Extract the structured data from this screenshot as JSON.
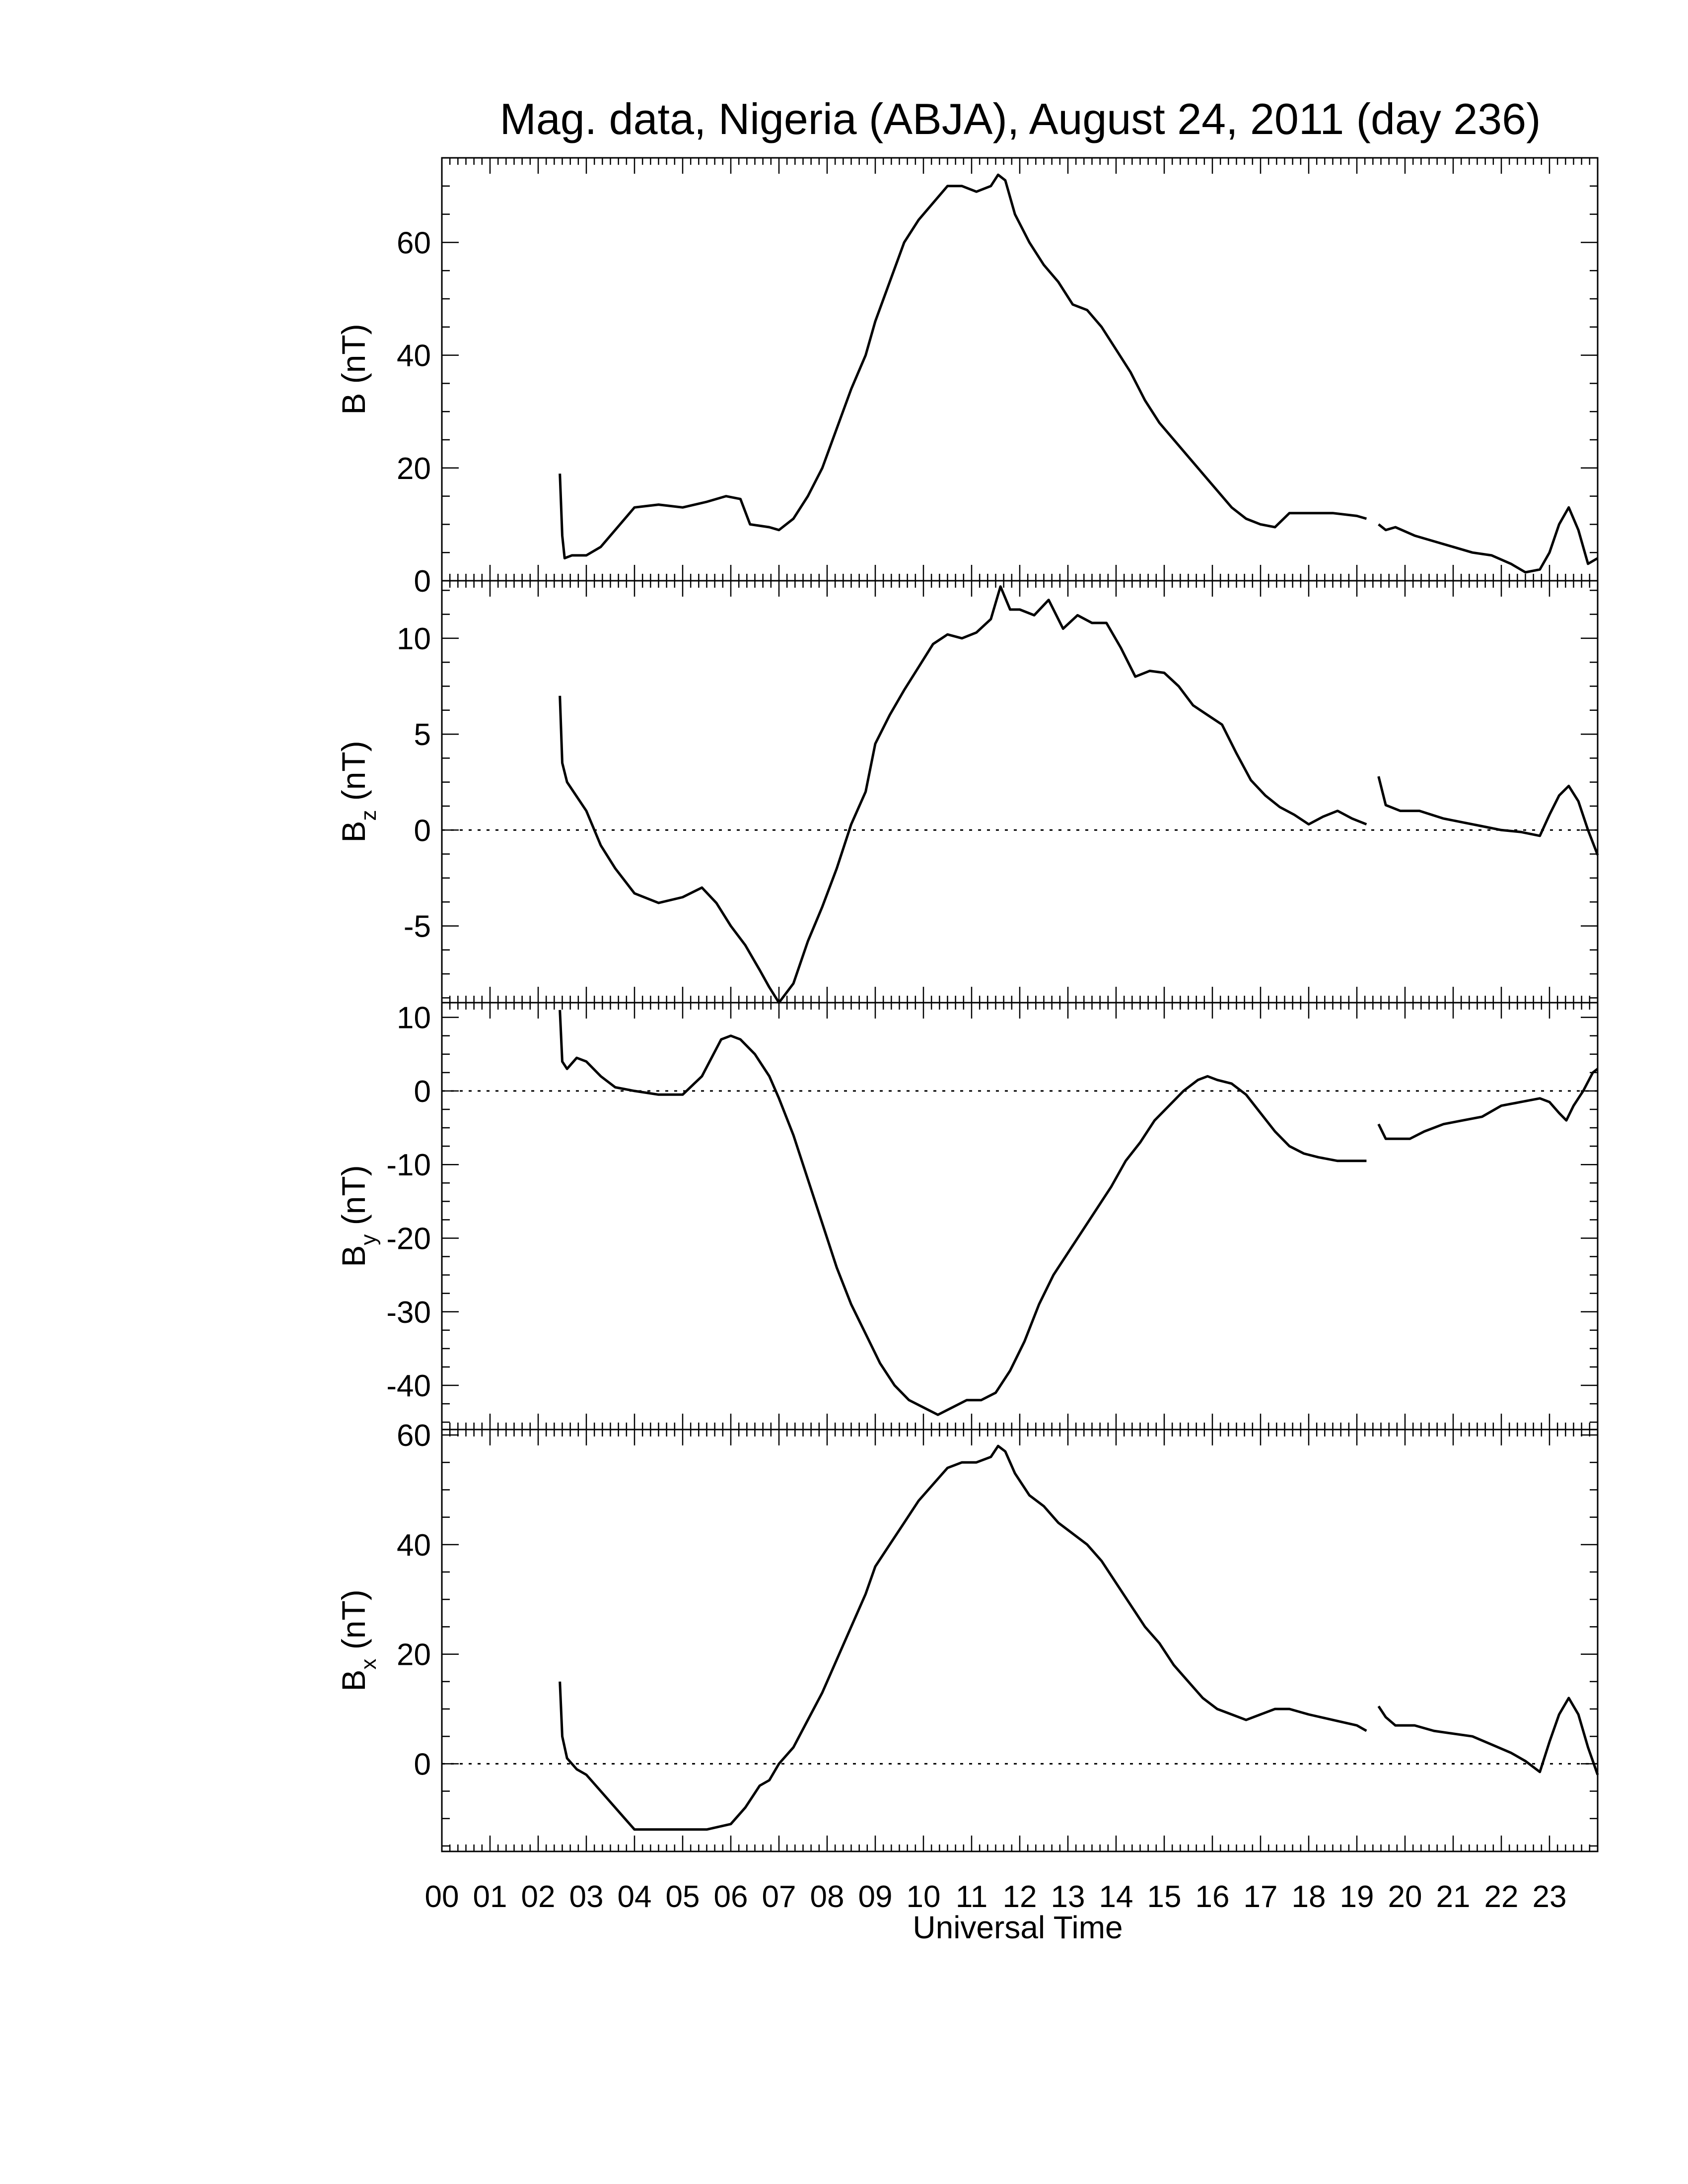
{
  "title": "Mag. data, Nigeria (ABJA), August 24, 2011 (day 236)",
  "xlabel": "Universal Time",
  "x_tick_labels": [
    "00",
    "01",
    "02",
    "03",
    "04",
    "05",
    "06",
    "07",
    "08",
    "09",
    "10",
    "11",
    "12",
    "13",
    "14",
    "15",
    "16",
    "17",
    "18",
    "19",
    "20",
    "21",
    "22",
    "23"
  ],
  "chart_data": [
    {
      "type": "line",
      "ylabel": "B (nT)",
      "ylabel_main": "B",
      "ylabel_sub": "",
      "ylabel_unit": "(nT)",
      "xlim": [
        0,
        24
      ],
      "ylim": [
        0,
        75
      ],
      "yticks": [
        0,
        20,
        40,
        60
      ],
      "zero_line": false,
      "series": [
        {
          "x": [
            2.45,
            2.5,
            2.55,
            2.7,
            3.0,
            3.3,
            3.7,
            4.0,
            4.5,
            5.0,
            5.5,
            5.9,
            6.2,
            6.4,
            6.8,
            7.0,
            7.3,
            7.6,
            7.9,
            8.2,
            8.5,
            8.8,
            9.0,
            9.3,
            9.6,
            9.9,
            10.2,
            10.5,
            10.8,
            11.1,
            11.4,
            11.55,
            11.7,
            11.9,
            12.2,
            12.5,
            12.8,
            13.1,
            13.4,
            13.7,
            14.0,
            14.3,
            14.6,
            14.9,
            15.2,
            15.5,
            15.8,
            16.1,
            16.4,
            16.7,
            17.0,
            17.3,
            17.6,
            18.0,
            18.5,
            19.0,
            19.2
          ],
          "y": [
            19,
            8,
            4,
            4.5,
            4.5,
            6,
            10,
            13,
            13.5,
            13,
            14,
            15,
            14.5,
            10,
            9.5,
            9,
            11,
            15,
            20,
            27,
            34,
            40,
            46,
            53,
            60,
            64,
            67,
            70,
            70,
            69,
            70,
            72,
            71,
            65,
            60,
            56,
            53,
            49,
            48,
            45,
            41,
            37,
            32,
            28,
            25,
            22,
            19,
            16,
            13,
            11,
            10,
            9.5,
            12,
            12,
            12,
            11.5,
            11
          ]
        },
        {
          "x": [
            19.45,
            19.6,
            19.8,
            20.2,
            20.6,
            21.0,
            21.4,
            21.8,
            22.2,
            22.5,
            22.8,
            23.0,
            23.2,
            23.4,
            23.6,
            23.8,
            24.0
          ],
          "y": [
            10,
            9,
            9.5,
            8,
            7,
            6,
            5,
            4.5,
            3,
            1.5,
            2,
            5,
            10,
            13,
            9,
            3,
            4
          ]
        }
      ]
    },
    {
      "type": "line",
      "ylabel": "Bz (nT)",
      "ylabel_main": "B",
      "ylabel_sub": "z",
      "ylabel_unit": "(nT)",
      "xlim": [
        0,
        24
      ],
      "ylim": [
        -9,
        13
      ],
      "yticks": [
        -5,
        0,
        5,
        10
      ],
      "zero_line": true,
      "series": [
        {
          "x": [
            2.45,
            2.5,
            2.6,
            3.0,
            3.3,
            3.6,
            4.0,
            4.5,
            5.0,
            5.4,
            5.7,
            6.0,
            6.3,
            6.6,
            6.8,
            7.0,
            7.3,
            7.6,
            7.9,
            8.2,
            8.5,
            8.8,
            9.0,
            9.3,
            9.6,
            9.9,
            10.2,
            10.5,
            10.8,
            11.1,
            11.4,
            11.6,
            11.8,
            12.0,
            12.3,
            12.6,
            12.9,
            13.2,
            13.5,
            13.8,
            14.1,
            14.4,
            14.7,
            15.0,
            15.3,
            15.6,
            15.9,
            16.2,
            16.5,
            16.8,
            17.1,
            17.4,
            17.7,
            18.0,
            18.3,
            18.6,
            18.9,
            19.2
          ],
          "y": [
            7,
            3.5,
            2.5,
            1,
            -0.8,
            -2,
            -3.3,
            -3.8,
            -3.5,
            -3,
            -3.8,
            -5,
            -6,
            -7.3,
            -8.2,
            -9,
            -8,
            -5.8,
            -4,
            -2,
            0.3,
            2,
            4.5,
            6,
            7.3,
            8.5,
            9.7,
            10.2,
            10,
            10.3,
            11,
            12.7,
            11.5,
            11.5,
            11.2,
            12,
            10.5,
            11.2,
            10.8,
            10.8,
            9.5,
            8,
            8.3,
            8.2,
            7.5,
            6.5,
            6,
            5.5,
            4,
            2.6,
            1.8,
            1.2,
            0.8,
            0.3,
            0.7,
            1,
            0.6,
            0.3
          ]
        },
        {
          "x": [
            19.45,
            19.6,
            19.9,
            20.3,
            20.8,
            21.2,
            21.6,
            22.0,
            22.4,
            22.8,
            23.0,
            23.2,
            23.4,
            23.6,
            23.8,
            24.0
          ],
          "y": [
            2.8,
            1.3,
            1,
            1,
            0.6,
            0.4,
            0.2,
            0,
            -0.1,
            -0.3,
            0.8,
            1.8,
            2.3,
            1.5,
            0,
            -1.3
          ]
        }
      ]
    },
    {
      "type": "line",
      "ylabel": "By (nT)",
      "ylabel_main": "B",
      "ylabel_sub": "y",
      "ylabel_unit": "(nT)",
      "xlim": [
        0,
        24
      ],
      "ylim": [
        -46,
        12
      ],
      "yticks": [
        -40,
        -30,
        -20,
        -10,
        0,
        10
      ],
      "zero_line": true,
      "series": [
        {
          "x": [
            2.45,
            2.5,
            2.6,
            2.8,
            3.0,
            3.3,
            3.6,
            4.0,
            4.5,
            5.0,
            5.4,
            5.8,
            6.0,
            6.2,
            6.5,
            6.8,
            7.0,
            7.3,
            7.6,
            7.9,
            8.2,
            8.5,
            8.8,
            9.1,
            9.4,
            9.7,
            10.0,
            10.3,
            10.6,
            10.9,
            11.2,
            11.5,
            11.8,
            12.1,
            12.4,
            12.7,
            13.0,
            13.3,
            13.6,
            13.9,
            14.2,
            14.5,
            14.8,
            15.1,
            15.4,
            15.7,
            15.9,
            16.1,
            16.4,
            16.7,
            17.0,
            17.3,
            17.6,
            17.9,
            18.2,
            18.6,
            18.9,
            19.2
          ],
          "y": [
            11,
            4,
            3,
            4.5,
            4,
            2,
            0.5,
            0,
            -0.5,
            -0.5,
            2,
            7,
            7.5,
            7,
            5,
            2,
            -1,
            -6,
            -12,
            -18,
            -24,
            -29,
            -33,
            -37,
            -40,
            -42,
            -43,
            -44,
            -43,
            -42,
            -42,
            -41,
            -38,
            -34,
            -29,
            -25,
            -22,
            -19,
            -16,
            -13,
            -9.5,
            -7,
            -4,
            -2,
            0,
            1.5,
            2,
            1.5,
            1,
            -0.5,
            -3,
            -5.5,
            -7.5,
            -8.5,
            -9,
            -9.5,
            -9.5,
            -9.5
          ]
        },
        {
          "x": [
            19.45,
            19.6,
            19.8,
            20.1,
            20.4,
            20.8,
            21.2,
            21.6,
            22.0,
            22.4,
            22.8,
            23.0,
            23.2,
            23.35,
            23.5,
            23.7,
            23.9,
            24.0
          ],
          "y": [
            -4.5,
            -6.5,
            -6.5,
            -6.5,
            -5.5,
            -4.5,
            -4,
            -3.5,
            -2,
            -1.5,
            -1,
            -1.5,
            -3,
            -4,
            -2,
            0,
            2.5,
            3
          ]
        }
      ]
    },
    {
      "type": "line",
      "ylabel": "Bx (nT)",
      "ylabel_main": "B",
      "ylabel_sub": "x",
      "ylabel_unit": "(nT)",
      "xlim": [
        0,
        24
      ],
      "ylim": [
        -16,
        61
      ],
      "yticks": [
        0,
        20,
        40,
        60
      ],
      "zero_line": true,
      "series": [
        {
          "x": [
            2.45,
            2.5,
            2.6,
            2.8,
            3.0,
            3.4,
            3.8,
            4.0,
            4.5,
            5.0,
            5.5,
            6.0,
            6.3,
            6.6,
            6.8,
            7.0,
            7.3,
            7.6,
            7.9,
            8.2,
            8.5,
            8.8,
            9.0,
            9.3,
            9.6,
            9.9,
            10.2,
            10.5,
            10.8,
            11.1,
            11.4,
            11.55,
            11.7,
            11.9,
            12.2,
            12.5,
            12.8,
            13.1,
            13.4,
            13.7,
            14.0,
            14.3,
            14.6,
            14.9,
            15.2,
            15.5,
            15.8,
            16.1,
            16.4,
            16.7,
            17.0,
            17.3,
            17.6,
            18.0,
            18.5,
            19.0,
            19.2
          ],
          "y": [
            15,
            5,
            1,
            -1,
            -2,
            -6,
            -10,
            -12,
            -12,
            -12,
            -12,
            -11,
            -8,
            -4,
            -3,
            0,
            3,
            8,
            13,
            19,
            25,
            31,
            36,
            40,
            44,
            48,
            51,
            54,
            55,
            55,
            56,
            58,
            57,
            53,
            49,
            47,
            44,
            42,
            40,
            37,
            33,
            29,
            25,
            22,
            18,
            15,
            12,
            10,
            9,
            8,
            9,
            10,
            10,
            9,
            8,
            7,
            6
          ]
        },
        {
          "x": [
            19.45,
            19.6,
            19.8,
            20.2,
            20.6,
            21.0,
            21.4,
            21.8,
            22.2,
            22.5,
            22.8,
            23.0,
            23.2,
            23.4,
            23.6,
            23.8,
            24.0
          ],
          "y": [
            10.5,
            8.5,
            7,
            7,
            6,
            5.5,
            5,
            3.5,
            2,
            0.5,
            -1.5,
            4,
            9,
            12,
            9,
            3,
            -2
          ]
        }
      ]
    }
  ]
}
